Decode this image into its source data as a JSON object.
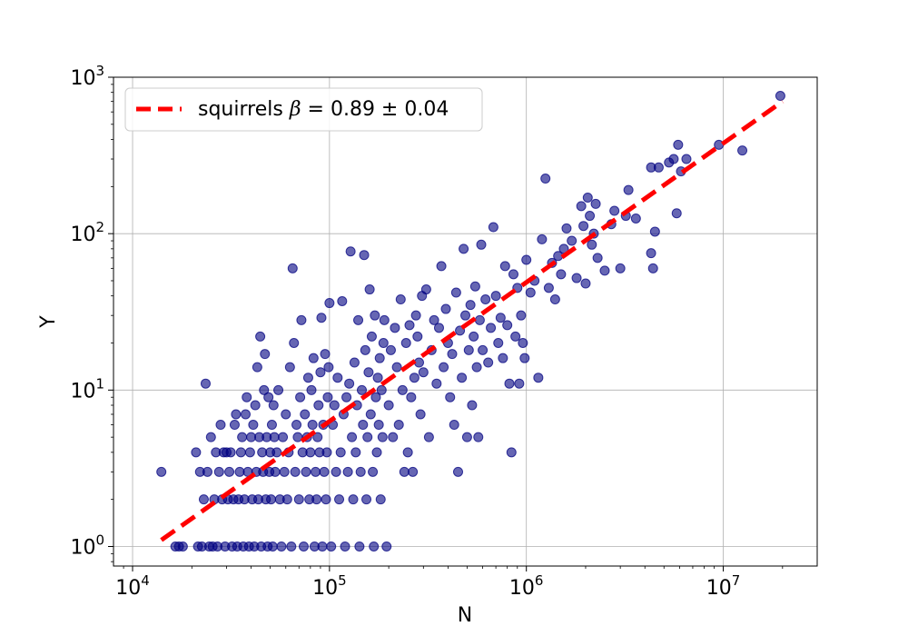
{
  "chart_data": {
    "type": "scatter",
    "title": "",
    "xlabel": "N",
    "ylabel": "Y",
    "xscale": "log",
    "yscale": "log",
    "xlim": [
      8000,
      30000000
    ],
    "ylim": [
      0.75,
      1000
    ],
    "x_ticks": [
      {
        "value": 10000,
        "base": "10",
        "exp": "4"
      },
      {
        "value": 100000,
        "base": "10",
        "exp": "5"
      },
      {
        "value": 1000000,
        "base": "10",
        "exp": "6"
      },
      {
        "value": 10000000,
        "base": "10",
        "exp": "7"
      }
    ],
    "y_ticks": [
      {
        "value": 1,
        "base": "10",
        "exp": "0"
      },
      {
        "value": 10,
        "base": "10",
        "exp": "1"
      },
      {
        "value": 100,
        "base": "10",
        "exp": "2"
      },
      {
        "value": 1000,
        "base": "10",
        "exp": "3"
      }
    ],
    "grid": true,
    "legend_position": "top-left",
    "series": [
      {
        "kind": "points",
        "color": "#000080",
        "points": [
          [
            14000,
            3
          ],
          [
            16500,
            1
          ],
          [
            17200,
            1
          ],
          [
            18000,
            1
          ],
          [
            21000,
            4
          ],
          [
            21500,
            1
          ],
          [
            22000,
            3
          ],
          [
            22500,
            1
          ],
          [
            23000,
            2
          ],
          [
            23500,
            11
          ],
          [
            24000,
            3
          ],
          [
            24500,
            1
          ],
          [
            25000,
            5
          ],
          [
            25500,
            1
          ],
          [
            26000,
            2
          ],
          [
            26500,
            4
          ],
          [
            27000,
            1
          ],
          [
            27500,
            3
          ],
          [
            28000,
            6
          ],
          [
            28500,
            2
          ],
          [
            29000,
            4
          ],
          [
            29500,
            1
          ],
          [
            30000,
            4
          ],
          [
            30500,
            2
          ],
          [
            31000,
            3
          ],
          [
            31500,
            4
          ],
          [
            32000,
            1
          ],
          [
            32500,
            2
          ],
          [
            33000,
            6
          ],
          [
            33500,
            7
          ],
          [
            34000,
            1
          ],
          [
            34500,
            2
          ],
          [
            35000,
            3
          ],
          [
            35500,
            4
          ],
          [
            36000,
            5
          ],
          [
            36500,
            1
          ],
          [
            37000,
            2
          ],
          [
            37500,
            7
          ],
          [
            38000,
            9
          ],
          [
            38500,
            3
          ],
          [
            39000,
            1
          ],
          [
            39500,
            4
          ],
          [
            40000,
            5
          ],
          [
            40500,
            2
          ],
          [
            41000,
            6
          ],
          [
            41500,
            1
          ],
          [
            42000,
            8
          ],
          [
            42500,
            3
          ],
          [
            43000,
            14
          ],
          [
            43500,
            2
          ],
          [
            44000,
            5
          ],
          [
            44500,
            22
          ],
          [
            45000,
            1
          ],
          [
            45500,
            4
          ],
          [
            46000,
            3
          ],
          [
            46500,
            10
          ],
          [
            47000,
            17
          ],
          [
            47500,
            2
          ],
          [
            48000,
            5
          ],
          [
            48500,
            1
          ],
          [
            49000,
            9
          ],
          [
            49500,
            3
          ],
          [
            50000,
            4
          ],
          [
            50500,
            2
          ],
          [
            51000,
            6
          ],
          [
            51500,
            1
          ],
          [
            52000,
            8
          ],
          [
            52500,
            5
          ],
          [
            53000,
            3
          ],
          [
            54000,
            4
          ],
          [
            55000,
            10
          ],
          [
            56000,
            2
          ],
          [
            57000,
            1
          ],
          [
            58000,
            5
          ],
          [
            59000,
            3
          ],
          [
            60000,
            7
          ],
          [
            61000,
            2
          ],
          [
            62000,
            4
          ],
          [
            63000,
            14
          ],
          [
            64000,
            1
          ],
          [
            65000,
            60
          ],
          [
            66000,
            20
          ],
          [
            67000,
            3
          ],
          [
            68000,
            6
          ],
          [
            69000,
            5
          ],
          [
            70000,
            2
          ],
          [
            71000,
            9
          ],
          [
            72000,
            28
          ],
          [
            73000,
            4
          ],
          [
            74000,
            1
          ],
          [
            75000,
            7
          ],
          [
            76000,
            3
          ],
          [
            77000,
            5
          ],
          [
            78000,
            12
          ],
          [
            79000,
            2
          ],
          [
            80000,
            4
          ],
          [
            81000,
            10
          ],
          [
            82000,
            6
          ],
          [
            83000,
            16
          ],
          [
            84000,
            1
          ],
          [
            85000,
            3
          ],
          [
            86000,
            2
          ],
          [
            87000,
            5
          ],
          [
            88000,
            8
          ],
          [
            89000,
            4
          ],
          [
            90000,
            13
          ],
          [
            91000,
            29
          ],
          [
            92000,
            1
          ],
          [
            93000,
            6
          ],
          [
            94000,
            3
          ],
          [
            95000,
            17
          ],
          [
            96000,
            2
          ],
          [
            97000,
            4
          ],
          [
            98000,
            9
          ],
          [
            99000,
            14
          ],
          [
            100000,
            36
          ],
          [
            102000,
            1
          ],
          [
            104000,
            6
          ],
          [
            106000,
            8
          ],
          [
            108000,
            3
          ],
          [
            110000,
            12
          ],
          [
            112000,
            2
          ],
          [
            114000,
            4
          ],
          [
            116000,
            37
          ],
          [
            118000,
            7
          ],
          [
            120000,
            1
          ],
          [
            122000,
            9
          ],
          [
            124000,
            3
          ],
          [
            126000,
            11
          ],
          [
            128000,
            77
          ],
          [
            130000,
            5
          ],
          [
            132000,
            2
          ],
          [
            134000,
            15
          ],
          [
            136000,
            4
          ],
          [
            138000,
            8
          ],
          [
            140000,
            28
          ],
          [
            142000,
            1
          ],
          [
            144000,
            3
          ],
          [
            146000,
            10
          ],
          [
            148000,
            6
          ],
          [
            150000,
            73
          ],
          [
            152000,
            18
          ],
          [
            154000,
            2
          ],
          [
            156000,
            5
          ],
          [
            158000,
            13
          ],
          [
            160000,
            44
          ],
          [
            162000,
            7
          ],
          [
            164000,
            22
          ],
          [
            166000,
            3
          ],
          [
            168000,
            1
          ],
          [
            170000,
            30
          ],
          [
            172000,
            9
          ],
          [
            174000,
            4
          ],
          [
            176000,
            12
          ],
          [
            178000,
            6
          ],
          [
            180000,
            16
          ],
          [
            182000,
            2
          ],
          [
            184000,
            10
          ],
          [
            186000,
            5
          ],
          [
            188000,
            20
          ],
          [
            190000,
            28
          ],
          [
            195000,
            1
          ],
          [
            200000,
            8
          ],
          [
            205000,
            18
          ],
          [
            210000,
            5
          ],
          [
            215000,
            25
          ],
          [
            220000,
            14
          ],
          [
            225000,
            6
          ],
          [
            230000,
            38
          ],
          [
            235000,
            10
          ],
          [
            240000,
            3
          ],
          [
            245000,
            20
          ],
          [
            250000,
            4
          ],
          [
            255000,
            26
          ],
          [
            260000,
            9
          ],
          [
            265000,
            3
          ],
          [
            270000,
            12
          ],
          [
            275000,
            30
          ],
          [
            280000,
            22
          ],
          [
            285000,
            15
          ],
          [
            290000,
            7
          ],
          [
            295000,
            40
          ],
          [
            300000,
            13
          ],
          [
            310000,
            44
          ],
          [
            320000,
            5
          ],
          [
            330000,
            18
          ],
          [
            340000,
            28
          ],
          [
            350000,
            11
          ],
          [
            360000,
            25
          ],
          [
            370000,
            62
          ],
          [
            380000,
            14
          ],
          [
            390000,
            33
          ],
          [
            400000,
            20
          ],
          [
            410000,
            9
          ],
          [
            420000,
            17
          ],
          [
            430000,
            6
          ],
          [
            440000,
            42
          ],
          [
            450000,
            3
          ],
          [
            460000,
            24
          ],
          [
            470000,
            12
          ],
          [
            480000,
            80
          ],
          [
            490000,
            30
          ],
          [
            500000,
            5
          ],
          [
            510000,
            18
          ],
          [
            520000,
            35
          ],
          [
            530000,
            8
          ],
          [
            540000,
            22
          ],
          [
            550000,
            46
          ],
          [
            560000,
            14
          ],
          [
            570000,
            5
          ],
          [
            580000,
            28
          ],
          [
            590000,
            85
          ],
          [
            600000,
            18
          ],
          [
            620000,
            38
          ],
          [
            640000,
            15
          ],
          [
            660000,
            25
          ],
          [
            680000,
            110
          ],
          [
            700000,
            40
          ],
          [
            720000,
            20
          ],
          [
            740000,
            29
          ],
          [
            760000,
            16
          ],
          [
            780000,
            62
          ],
          [
            800000,
            26
          ],
          [
            820000,
            11
          ],
          [
            840000,
            4
          ],
          [
            860000,
            55
          ],
          [
            880000,
            22
          ],
          [
            900000,
            45
          ],
          [
            920000,
            11
          ],
          [
            940000,
            30
          ],
          [
            960000,
            20
          ],
          [
            980000,
            16
          ],
          [
            1000000,
            68
          ],
          [
            1050000,
            42
          ],
          [
            1100000,
            50
          ],
          [
            1150000,
            12
          ],
          [
            1200000,
            92
          ],
          [
            1250000,
            225
          ],
          [
            1300000,
            45
          ],
          [
            1350000,
            65
          ],
          [
            1400000,
            38
          ],
          [
            1450000,
            72
          ],
          [
            1500000,
            55
          ],
          [
            1550000,
            80
          ],
          [
            1600000,
            108
          ],
          [
            1700000,
            90
          ],
          [
            1800000,
            52
          ],
          [
            1900000,
            150
          ],
          [
            1950000,
            112
          ],
          [
            2000000,
            48
          ],
          [
            2050000,
            170
          ],
          [
            2100000,
            130
          ],
          [
            2150000,
            85
          ],
          [
            2200000,
            100
          ],
          [
            2250000,
            155
          ],
          [
            2300000,
            70
          ],
          [
            2500000,
            58
          ],
          [
            2700000,
            115
          ],
          [
            2800000,
            140
          ],
          [
            3000000,
            60
          ],
          [
            3200000,
            130
          ],
          [
            3300000,
            190
          ],
          [
            3600000,
            125
          ],
          [
            4300000,
            265
          ],
          [
            4300000,
            75
          ],
          [
            4400000,
            60
          ],
          [
            4500000,
            103
          ],
          [
            4700000,
            265
          ],
          [
            5300000,
            285
          ],
          [
            5600000,
            300
          ],
          [
            5900000,
            370
          ],
          [
            6100000,
            250
          ],
          [
            6500000,
            300
          ],
          [
            5800000,
            135
          ],
          [
            9500000,
            370
          ],
          [
            12500000,
            340
          ],
          [
            19500000,
            760
          ]
        ]
      },
      {
        "kind": "fit",
        "name": "squirrels",
        "color": "#ff0000",
        "line_style": "dashed",
        "x": [
          14000,
          20000000
        ],
        "y": [
          1.1,
          700
        ]
      }
    ]
  },
  "legend": {
    "prefix": "squirrels ",
    "symbol": "β",
    "suffix": " = 0.89 ± 0.04"
  }
}
